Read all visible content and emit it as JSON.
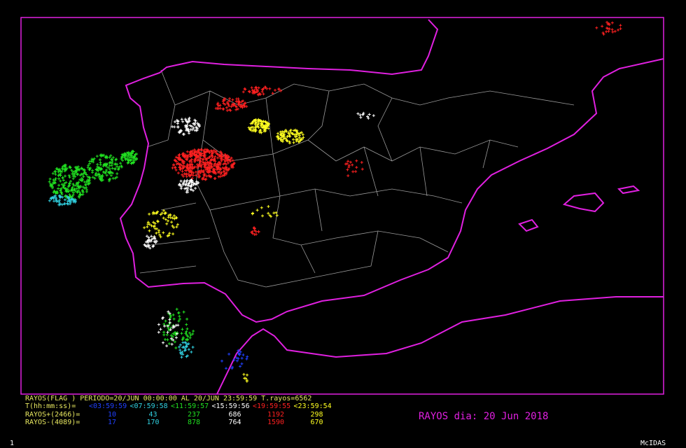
{
  "legend": {
    "header": "RAYOS(FLAG ) PERIODO=20/JUN 00:00:00 AL 20/JUN 23:59:59  T.rayos=6562",
    "time_label": "T(hh:mm:ss)=",
    "intervals": [
      "<03:59:59",
      "<07:59:58",
      "<11:59:57",
      "<15:59:56",
      "<19:59:55",
      "<23:59:54"
    ],
    "interval_colors": [
      "#2040ff",
      "#30d0e0",
      "#20e020",
      "#ffffff",
      "#ff2020",
      "#ffff20"
    ],
    "positive_label": "RAYOS+(2466)=",
    "positive": [
      10,
      43,
      237,
      686,
      1192,
      298
    ],
    "negative_label": "RAYOS-(4089)=",
    "negative": [
      17,
      170,
      878,
      764,
      1590,
      670
    ]
  },
  "title": "RAYOS dia: 20 Jun 2018",
  "footer_left": "1",
  "footer_right": "McIDAS"
}
